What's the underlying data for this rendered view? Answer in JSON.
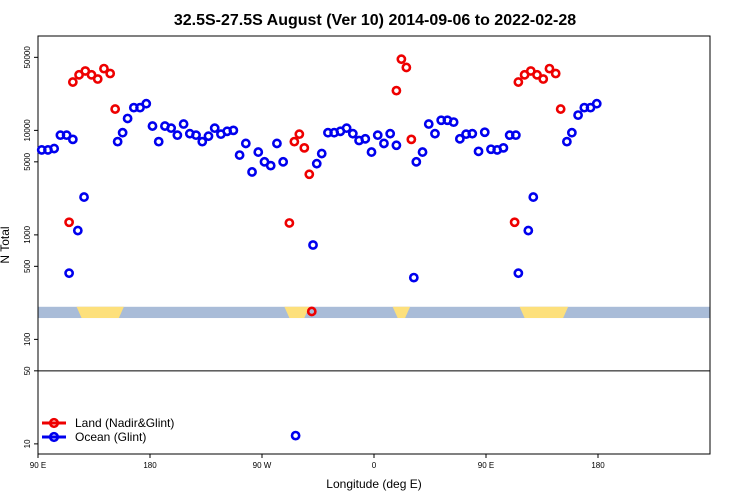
{
  "chart_data": {
    "type": "scatter",
    "title": "32.5S-27.5S August (Ver 10)   2014-09-06 to 2022-02-28",
    "xlabel": "Longitude (deg E)",
    "ylabel": "N Total",
    "xscale": "linear",
    "yscale": "log",
    "xlim": [
      -90,
      180
    ],
    "ylim": [
      8,
      80000
    ],
    "x_ticks": [
      {
        "value": -90,
        "label": "90 E"
      },
      {
        "value": -45,
        "label": "180"
      },
      {
        "value": 0,
        "label": "90 W"
      },
      {
        "value": 45,
        "label": "0"
      },
      {
        "value": 90,
        "label": "90 E"
      },
      {
        "value": 135,
        "label": "180"
      }
    ],
    "y_ticks": [
      {
        "value": 10,
        "label": "10"
      },
      {
        "value": 50,
        "label": "50"
      },
      {
        "value": 100,
        "label": "100"
      },
      {
        "value": 500,
        "label": "500"
      },
      {
        "value": 1000,
        "label": "1000"
      },
      {
        "value": 5000,
        "label": "5000"
      },
      {
        "value": 10000,
        "label": "10000"
      },
      {
        "value": 50000,
        "label": "50000"
      }
    ],
    "reference_line_y": 50,
    "surface_band": {
      "y_range": [
        160,
        205
      ],
      "ocean_color": "#a9bcd8",
      "land_color": "#fde07c",
      "land_segments": [
        [
          -74.5,
          -55.5
        ],
        [
          9,
          19
        ],
        [
          52.5,
          59.5
        ],
        [
          103.5,
          123
        ]
      ]
    },
    "legend": {
      "position": "bottom-left",
      "entries": [
        {
          "label": "Land (Nadir&Glint)",
          "color": "#ee0000"
        },
        {
          "label": "Ocean (Glint)",
          "color": "#0000ee"
        }
      ]
    },
    "series": [
      {
        "name": "Land (Nadir&Glint)",
        "color": "#ee0000",
        "points": [
          [
            -77.5,
            1320
          ],
          [
            -76,
            29000
          ],
          [
            -73.5,
            34000
          ],
          [
            -71,
            37000
          ],
          [
            -68.5,
            34000
          ],
          [
            -66,
            31000
          ],
          [
            -63.5,
            39000
          ],
          [
            -61,
            35000
          ],
          [
            -59,
            16000
          ],
          [
            11,
            1300
          ],
          [
            13,
            7800
          ],
          [
            15,
            9200
          ],
          [
            17,
            6800
          ],
          [
            19,
            3800
          ],
          [
            20,
            185
          ],
          [
            54,
            24000
          ],
          [
            56,
            48000
          ],
          [
            58,
            40000
          ],
          [
            60,
            8200
          ],
          [
            101.5,
            1320
          ],
          [
            103,
            29000
          ],
          [
            105.5,
            34000
          ],
          [
            108,
            37000
          ],
          [
            110.5,
            34000
          ],
          [
            113,
            31000
          ],
          [
            115.5,
            39000
          ],
          [
            118,
            35000
          ],
          [
            120,
            16000
          ]
        ]
      },
      {
        "name": "Ocean (Glint)",
        "color": "#0000ee",
        "points": [
          [
            -88.5,
            6500
          ],
          [
            -86,
            6500
          ],
          [
            -83.5,
            6700
          ],
          [
            -81,
            9000
          ],
          [
            -78.5,
            9000
          ],
          [
            -77.5,
            430
          ],
          [
            -76,
            8200
          ],
          [
            -74,
            1100
          ],
          [
            -71.5,
            2300
          ],
          [
            -58,
            7800
          ],
          [
            -56,
            9500
          ],
          [
            -54,
            13000
          ],
          [
            -51.5,
            16500
          ],
          [
            -49,
            16500
          ],
          [
            -46.5,
            18000
          ],
          [
            -44,
            11000
          ],
          [
            -41.5,
            7800
          ],
          [
            -39,
            11000
          ],
          [
            -36.5,
            10500
          ],
          [
            -34,
            9000
          ],
          [
            -31.5,
            11500
          ],
          [
            -29,
            9300
          ],
          [
            -26.5,
            9000
          ],
          [
            -24,
            7800
          ],
          [
            -21.5,
            8800
          ],
          [
            -19,
            10500
          ],
          [
            -16.5,
            9200
          ],
          [
            -14,
            9800
          ],
          [
            -11.5,
            10000
          ],
          [
            -9,
            5800
          ],
          [
            -6.5,
            7500
          ],
          [
            -4,
            4000
          ],
          [
            -1.5,
            6200
          ],
          [
            1,
            5000
          ],
          [
            3.5,
            4600
          ],
          [
            6,
            7500
          ],
          [
            8.5,
            5000
          ],
          [
            13.5,
            12
          ],
          [
            20.5,
            800
          ],
          [
            22,
            4800
          ],
          [
            24,
            6000
          ],
          [
            26.5,
            9500
          ],
          [
            29,
            9500
          ],
          [
            31.5,
            9800
          ],
          [
            34,
            10500
          ],
          [
            36.5,
            9300
          ],
          [
            39,
            8000
          ],
          [
            41.5,
            8300
          ],
          [
            44,
            6200
          ],
          [
            46.5,
            9000
          ],
          [
            49,
            7500
          ],
          [
            51.5,
            9300
          ],
          [
            54,
            7200
          ],
          [
            61,
            390
          ],
          [
            62,
            5000
          ],
          [
            64.5,
            6200
          ],
          [
            67,
            11500
          ],
          [
            69.5,
            9300
          ],
          [
            72,
            12500
          ],
          [
            74.5,
            12500
          ],
          [
            77,
            12000
          ],
          [
            79.5,
            8300
          ],
          [
            82,
            9200
          ],
          [
            84.5,
            9300
          ],
          [
            87,
            6300
          ],
          [
            89.5,
            9600
          ],
          [
            92,
            6600
          ],
          [
            94.5,
            6500
          ],
          [
            97,
            6800
          ],
          [
            99.5,
            9000
          ],
          [
            102,
            9000
          ],
          [
            103,
            430
          ],
          [
            107,
            1100
          ],
          [
            109,
            2300
          ],
          [
            122.5,
            7800
          ],
          [
            124.5,
            9500
          ],
          [
            127,
            14000
          ],
          [
            129.5,
            16500
          ],
          [
            132,
            16500
          ],
          [
            134.5,
            18000
          ]
        ]
      }
    ]
  }
}
